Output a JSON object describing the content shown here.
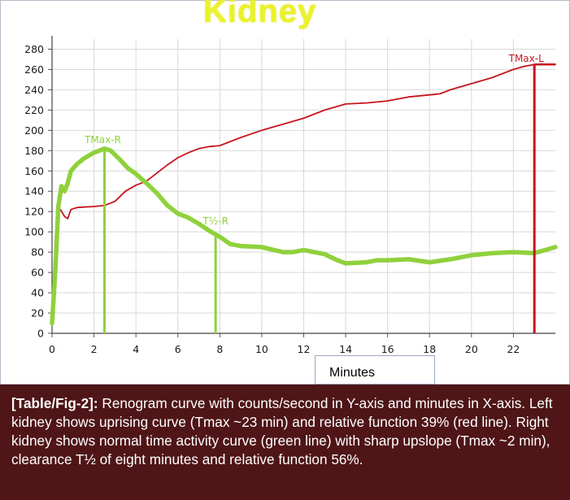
{
  "title": "Kidney",
  "xlabel": "Minutes",
  "caption": {
    "ref": "[Table/Fig-2]:",
    "text": " Renogram curve with counts/second in Y-axis and minutes in X-axis. Left kidney shows uprising curve (Tmax ~23 min) and relative function 39% (red line). Right kidney shows normal time activity curve (green line) with sharp upslope (Tmax ~2 min), clearance T½ of eight minutes and relative function 56%."
  },
  "colors": {
    "red": "#c8141e",
    "green": "#8fd13c",
    "caption_bg": "#4f1517",
    "title": "#eaf22a"
  },
  "chart_data": {
    "type": "line",
    "title": "Kidney",
    "xlabel": "Minutes",
    "ylabel": "",
    "xlim": [
      0,
      24
    ],
    "ylim": [
      0,
      290
    ],
    "xticks": [
      0,
      2,
      4,
      6,
      8,
      10,
      12,
      14,
      16,
      18,
      20,
      22
    ],
    "yticks": [
      0,
      20,
      40,
      60,
      80,
      100,
      120,
      140,
      160,
      180,
      200,
      220,
      240,
      260,
      280
    ],
    "grid": true,
    "series": [
      {
        "color": "#c8141e",
        "points": [
          [
            0,
            15
          ],
          [
            0.1,
            60
          ],
          [
            0.25,
            120
          ],
          [
            0.4,
            122
          ],
          [
            0.6,
            115
          ],
          [
            0.75,
            113
          ],
          [
            0.9,
            122
          ],
          [
            1.2,
            124
          ],
          [
            2,
            125
          ],
          [
            2.5,
            126
          ],
          [
            3,
            130
          ],
          [
            3.5,
            140
          ],
          [
            4,
            146
          ],
          [
            4.5,
            150
          ],
          [
            5,
            158
          ],
          [
            5.5,
            166
          ],
          [
            6,
            173
          ],
          [
            6.5,
            178
          ],
          [
            7,
            182
          ],
          [
            7.5,
            184
          ],
          [
            8,
            185
          ],
          [
            9,
            193
          ],
          [
            10,
            200
          ],
          [
            11,
            206
          ],
          [
            12,
            212
          ],
          [
            13,
            220
          ],
          [
            14,
            226
          ],
          [
            15,
            227
          ],
          [
            16,
            229
          ],
          [
            17,
            233
          ],
          [
            18,
            235
          ],
          [
            18.5,
            236
          ],
          [
            19,
            240
          ],
          [
            20,
            246
          ],
          [
            21,
            252
          ],
          [
            22,
            260
          ],
          [
            22.5,
            263
          ],
          [
            23,
            265
          ],
          [
            24,
            265
          ]
        ]
      },
      {
        "color": "#8fd13c",
        "points": [
          [
            0,
            10
          ],
          [
            0.15,
            60
          ],
          [
            0.3,
            125
          ],
          [
            0.45,
            145
          ],
          [
            0.6,
            140
          ],
          [
            0.75,
            148
          ],
          [
            0.9,
            160
          ],
          [
            1.2,
            167
          ],
          [
            1.5,
            172
          ],
          [
            2,
            178
          ],
          [
            2.5,
            182
          ],
          [
            2.8,
            180
          ],
          [
            3.2,
            172
          ],
          [
            3.6,
            163
          ],
          [
            4,
            157
          ],
          [
            4.5,
            148
          ],
          [
            5,
            138
          ],
          [
            5.5,
            126
          ],
          [
            6,
            118
          ],
          [
            6.5,
            114
          ],
          [
            7,
            108
          ],
          [
            7.5,
            101
          ],
          [
            8,
            95
          ],
          [
            8.5,
            88
          ],
          [
            9,
            86
          ],
          [
            10,
            85
          ],
          [
            11,
            80
          ],
          [
            11.5,
            80
          ],
          [
            12,
            82
          ],
          [
            13,
            78
          ],
          [
            13.5,
            73
          ],
          [
            14,
            69
          ],
          [
            15,
            70
          ],
          [
            15.5,
            72
          ],
          [
            16,
            72
          ],
          [
            17,
            73
          ],
          [
            18,
            70
          ],
          [
            19,
            73
          ],
          [
            20,
            77
          ],
          [
            21,
            79
          ],
          [
            22,
            80
          ],
          [
            23,
            79
          ],
          [
            24,
            85
          ]
        ]
      }
    ],
    "markers": [
      {
        "label": "TMax-R",
        "x": 2.5,
        "color": "#8fd13c"
      },
      {
        "label": "T½-R",
        "x": 7.8,
        "color": "#8fd13c"
      },
      {
        "label": "TMax-L",
        "x": 23,
        "color": "#c8141e"
      }
    ]
  }
}
